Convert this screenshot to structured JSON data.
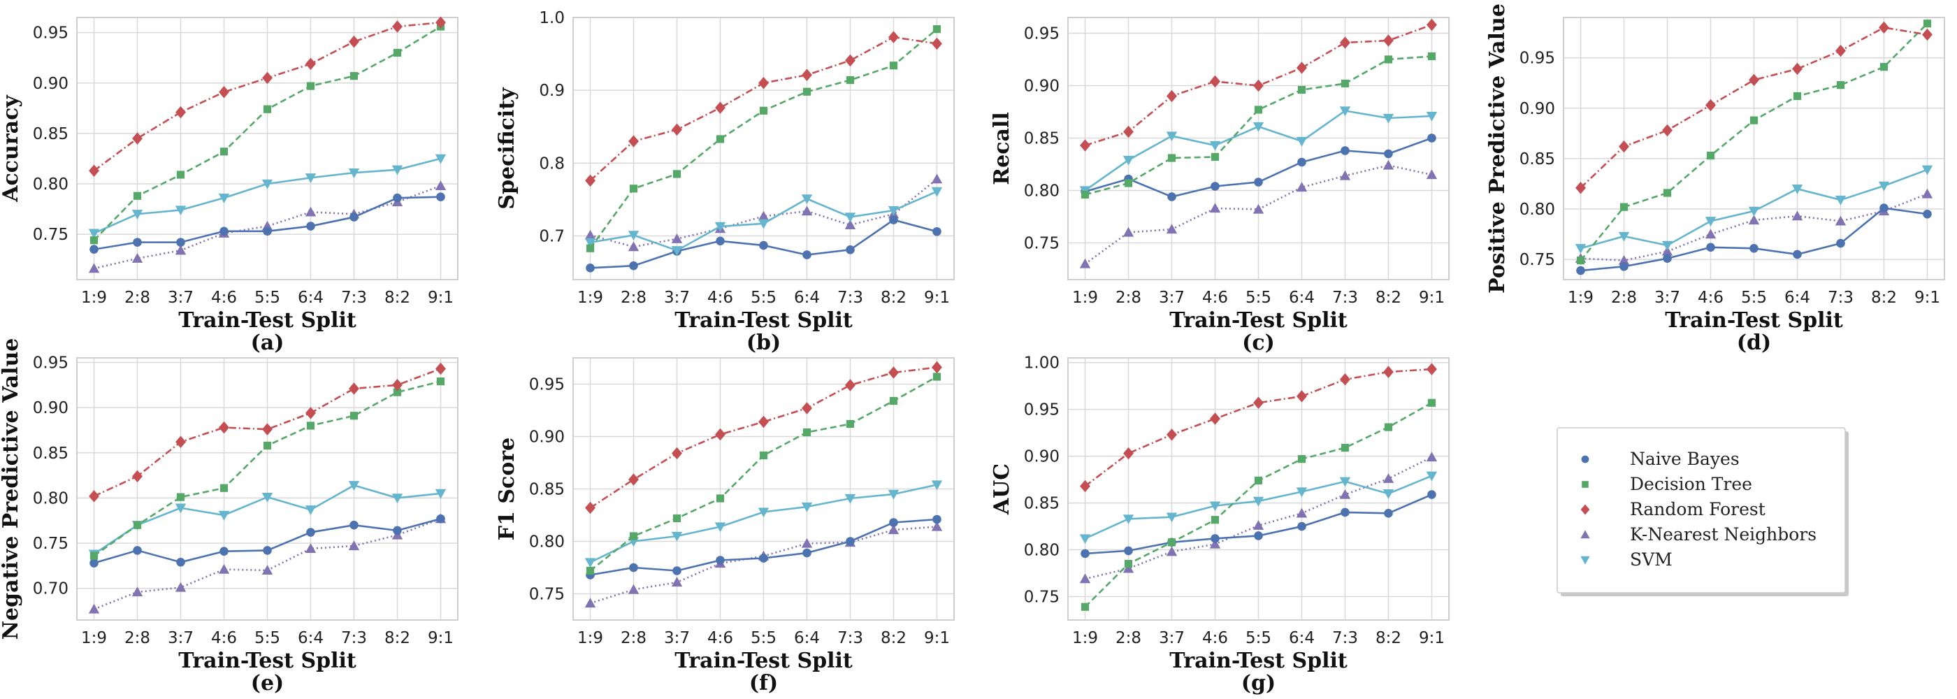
{
  "figure": {
    "x_categories": [
      "1:9",
      "2:8",
      "3:7",
      "4:6",
      "5:5",
      "6:4",
      "7:3",
      "8:2",
      "9:1"
    ],
    "xlabel": "Train-Test Split",
    "series_styles": [
      {
        "name": "Naive Bayes",
        "color": "#4c72b0",
        "marker": "circle",
        "dash": "solid"
      },
      {
        "name": "Decision Tree",
        "color": "#55a868",
        "marker": "square",
        "dash": "dashed"
      },
      {
        "name": "Random Forest",
        "color": "#c44e52",
        "marker": "diamond",
        "dash": "dashdot"
      },
      {
        "name": "K-Nearest Neighbors",
        "color": "#8172b2",
        "marker": "triangle-up",
        "dash": "dotted"
      },
      {
        "name": "SVM",
        "color": "#64b5cd",
        "marker": "triangle-down",
        "dash": "solid"
      }
    ],
    "legend": {
      "entries": [
        "Naive Bayes",
        "Decision Tree",
        "Random Forest",
        "K-Nearest Neighbors",
        "SVM"
      ],
      "placement": "right of bottom row"
    },
    "grid": true
  },
  "chart_data": [
    {
      "type": "line",
      "panel": "(a)",
      "ylabel": "Accuracy",
      "xlabel": "Train-Test Split",
      "ylim": [
        0.705,
        0.965
      ],
      "yticks": [
        0.75,
        0.8,
        0.85,
        0.9,
        0.95
      ],
      "ytick_labels": [
        "0.75",
        "0.80",
        "0.85",
        "0.90",
        "0.95"
      ],
      "categories": [
        "1:9",
        "2:8",
        "3:7",
        "4:6",
        "5:5",
        "6:4",
        "7:3",
        "8:2",
        "9:1"
      ],
      "series": [
        {
          "name": "Naive Bayes",
          "values": [
            0.735,
            0.742,
            0.742,
            0.753,
            0.753,
            0.758,
            0.767,
            0.786,
            0.787
          ]
        },
        {
          "name": "Decision Tree",
          "values": [
            0.744,
            0.788,
            0.809,
            0.832,
            0.874,
            0.897,
            0.907,
            0.93,
            0.956
          ]
        },
        {
          "name": "Random Forest",
          "values": [
            0.813,
            0.845,
            0.871,
            0.891,
            0.905,
            0.919,
            0.941,
            0.956,
            0.96
          ]
        },
        {
          "name": "K-Nearest Neighbors",
          "values": [
            0.716,
            0.726,
            0.734,
            0.751,
            0.758,
            0.772,
            0.77,
            0.782,
            0.798
          ]
        },
        {
          "name": "SVM",
          "values": [
            0.751,
            0.77,
            0.774,
            0.786,
            0.8,
            0.806,
            0.811,
            0.814,
            0.825
          ]
        }
      ]
    },
    {
      "type": "line",
      "panel": "(b)",
      "ylabel": "Specificity",
      "xlabel": "Train-Test Split",
      "ylim": [
        0.64,
        1.0
      ],
      "yticks": [
        0.7,
        0.8,
        0.9,
        1.0
      ],
      "ytick_labels": [
        "0.7",
        "0.8",
        "0.9",
        "1.0"
      ],
      "categories": [
        "1:9",
        "2:8",
        "3:7",
        "4:6",
        "5:5",
        "6:4",
        "7:3",
        "8:2",
        "9:1"
      ],
      "series": [
        {
          "name": "Naive Bayes",
          "values": [
            0.656,
            0.659,
            0.679,
            0.693,
            0.687,
            0.674,
            0.681,
            0.722,
            0.706
          ]
        },
        {
          "name": "Decision Tree",
          "values": [
            0.683,
            0.765,
            0.785,
            0.833,
            0.872,
            0.898,
            0.914,
            0.934,
            0.984
          ]
        },
        {
          "name": "Random Forest",
          "values": [
            0.776,
            0.83,
            0.846,
            0.876,
            0.91,
            0.921,
            0.941,
            0.973,
            0.964
          ]
        },
        {
          "name": "K-Nearest Neighbors",
          "values": [
            0.701,
            0.685,
            0.696,
            0.71,
            0.727,
            0.734,
            0.715,
            0.73,
            0.778
          ]
        },
        {
          "name": "SVM",
          "values": [
            0.691,
            0.701,
            0.68,
            0.713,
            0.717,
            0.751,
            0.726,
            0.735,
            0.761
          ]
        }
      ]
    },
    {
      "type": "line",
      "panel": "(c)",
      "ylabel": "Recall",
      "xlabel": "Train-Test Split",
      "ylim": [
        0.715,
        0.965
      ],
      "yticks": [
        0.75,
        0.8,
        0.85,
        0.9,
        0.95
      ],
      "ytick_labels": [
        "0.75",
        "0.80",
        "0.85",
        "0.90",
        "0.95"
      ],
      "categories": [
        "1:9",
        "2:8",
        "3:7",
        "4:6",
        "5:5",
        "6:4",
        "7:3",
        "8:2",
        "9:1"
      ],
      "series": [
        {
          "name": "Naive Bayes",
          "values": [
            0.799,
            0.811,
            0.794,
            0.804,
            0.808,
            0.827,
            0.838,
            0.835,
            0.85
          ]
        },
        {
          "name": "Decision Tree",
          "values": [
            0.796,
            0.807,
            0.831,
            0.832,
            0.877,
            0.896,
            0.902,
            0.925,
            0.928
          ]
        },
        {
          "name": "Random Forest",
          "values": [
            0.843,
            0.856,
            0.89,
            0.904,
            0.9,
            0.917,
            0.941,
            0.943,
            0.958
          ]
        },
        {
          "name": "K-Nearest Neighbors",
          "values": [
            0.73,
            0.76,
            0.763,
            0.783,
            0.782,
            0.803,
            0.814,
            0.824,
            0.815
          ]
        },
        {
          "name": "SVM",
          "values": [
            0.8,
            0.829,
            0.852,
            0.843,
            0.861,
            0.847,
            0.876,
            0.869,
            0.871
          ]
        }
      ]
    },
    {
      "type": "line",
      "panel": "(d)",
      "ylabel": "Positive Predictive Value",
      "xlabel": "Train-Test Split",
      "ylim": [
        0.73,
        0.99
      ],
      "yticks": [
        0.75,
        0.8,
        0.85,
        0.9,
        0.95
      ],
      "ytick_labels": [
        "0.75",
        "0.80",
        "0.85",
        "0.90",
        "0.95"
      ],
      "categories": [
        "1:9",
        "2:8",
        "3:7",
        "4:6",
        "5:5",
        "6:4",
        "7:3",
        "8:2",
        "9:1"
      ],
      "series": [
        {
          "name": "Naive Bayes",
          "values": [
            0.739,
            0.743,
            0.751,
            0.762,
            0.761,
            0.755,
            0.766,
            0.801,
            0.795
          ]
        },
        {
          "name": "Decision Tree",
          "values": [
            0.749,
            0.802,
            0.816,
            0.853,
            0.888,
            0.912,
            0.923,
            0.941,
            0.984
          ]
        },
        {
          "name": "Random Forest",
          "values": [
            0.821,
            0.862,
            0.878,
            0.903,
            0.928,
            0.939,
            0.957,
            0.98,
            0.973
          ]
        },
        {
          "name": "K-Nearest Neighbors",
          "values": [
            0.751,
            0.749,
            0.758,
            0.775,
            0.789,
            0.793,
            0.788,
            0.798,
            0.815
          ]
        },
        {
          "name": "SVM",
          "values": [
            0.761,
            0.773,
            0.764,
            0.788,
            0.798,
            0.82,
            0.809,
            0.823,
            0.839
          ]
        }
      ]
    },
    {
      "type": "line",
      "panel": "(e)",
      "ylabel": "Negative Predictive Value",
      "xlabel": "Train-Test Split",
      "ylim": [
        0.665,
        0.955
      ],
      "yticks": [
        0.7,
        0.75,
        0.8,
        0.85,
        0.9,
        0.95
      ],
      "ytick_labels": [
        "0.70",
        "0.75",
        "0.80",
        "0.85",
        "0.90",
        "0.95"
      ],
      "categories": [
        "1:9",
        "2:8",
        "3:7",
        "4:6",
        "5:5",
        "6:4",
        "7:3",
        "8:2",
        "9:1"
      ],
      "series": [
        {
          "name": "Naive Bayes",
          "values": [
            0.728,
            0.742,
            0.729,
            0.741,
            0.742,
            0.762,
            0.77,
            0.764,
            0.777
          ]
        },
        {
          "name": "Decision Tree",
          "values": [
            0.736,
            0.77,
            0.801,
            0.811,
            0.858,
            0.88,
            0.891,
            0.917,
            0.929
          ]
        },
        {
          "name": "Random Forest",
          "values": [
            0.802,
            0.824,
            0.862,
            0.878,
            0.876,
            0.894,
            0.921,
            0.925,
            0.943
          ]
        },
        {
          "name": "K-Nearest Neighbors",
          "values": [
            0.677,
            0.696,
            0.701,
            0.721,
            0.72,
            0.744,
            0.747,
            0.759,
            0.777
          ]
        },
        {
          "name": "SVM",
          "values": [
            0.738,
            0.77,
            0.789,
            0.781,
            0.801,
            0.787,
            0.814,
            0.8,
            0.805
          ]
        }
      ]
    },
    {
      "type": "line",
      "panel": "(f)",
      "ylabel": "F1 Score",
      "xlabel": "Train-Test Split",
      "ylim": [
        0.725,
        0.975
      ],
      "yticks": [
        0.75,
        0.8,
        0.85,
        0.9,
        0.95
      ],
      "ytick_labels": [
        "0.75",
        "0.80",
        "0.85",
        "0.90",
        "0.95"
      ],
      "categories": [
        "1:9",
        "2:8",
        "3:7",
        "4:6",
        "5:5",
        "6:4",
        "7:3",
        "8:2",
        "9:1"
      ],
      "series": [
        {
          "name": "Naive Bayes",
          "values": [
            0.768,
            0.775,
            0.772,
            0.782,
            0.784,
            0.789,
            0.8,
            0.818,
            0.821
          ]
        },
        {
          "name": "Decision Tree",
          "values": [
            0.772,
            0.805,
            0.822,
            0.841,
            0.882,
            0.904,
            0.912,
            0.934,
            0.957
          ]
        },
        {
          "name": "Random Forest",
          "values": [
            0.832,
            0.859,
            0.884,
            0.902,
            0.914,
            0.927,
            0.949,
            0.961,
            0.966
          ]
        },
        {
          "name": "K-Nearest Neighbors",
          "values": [
            0.741,
            0.754,
            0.761,
            0.779,
            0.786,
            0.798,
            0.799,
            0.811,
            0.814
          ]
        },
        {
          "name": "SVM",
          "values": [
            0.78,
            0.8,
            0.805,
            0.814,
            0.828,
            0.833,
            0.841,
            0.845,
            0.854
          ]
        }
      ]
    },
    {
      "type": "line",
      "panel": "(g)",
      "ylabel": "AUC",
      "xlabel": "Train-Test Split",
      "ylim": [
        0.725,
        1.005
      ],
      "yticks": [
        0.75,
        0.8,
        0.85,
        0.9,
        0.95,
        1.0
      ],
      "ytick_labels": [
        "0.75",
        "0.80",
        "0.85",
        "0.90",
        "0.95",
        "1.00"
      ],
      "categories": [
        "1:9",
        "2:8",
        "3:7",
        "4:6",
        "5:5",
        "6:4",
        "7:3",
        "8:2",
        "9:1"
      ],
      "series": [
        {
          "name": "Naive Bayes",
          "values": [
            0.796,
            0.799,
            0.808,
            0.812,
            0.815,
            0.825,
            0.84,
            0.839,
            0.859
          ]
        },
        {
          "name": "Decision Tree",
          "values": [
            0.739,
            0.785,
            0.808,
            0.832,
            0.874,
            0.897,
            0.909,
            0.931,
            0.957
          ]
        },
        {
          "name": "Random Forest",
          "values": [
            0.868,
            0.903,
            0.923,
            0.94,
            0.957,
            0.964,
            0.982,
            0.99,
            0.993
          ]
        },
        {
          "name": "K-Nearest Neighbors",
          "values": [
            0.769,
            0.78,
            0.798,
            0.806,
            0.826,
            0.839,
            0.859,
            0.876,
            0.899
          ]
        },
        {
          "name": "SVM",
          "values": [
            0.812,
            0.833,
            0.835,
            0.847,
            0.852,
            0.862,
            0.873,
            0.86,
            0.879
          ]
        }
      ]
    }
  ]
}
